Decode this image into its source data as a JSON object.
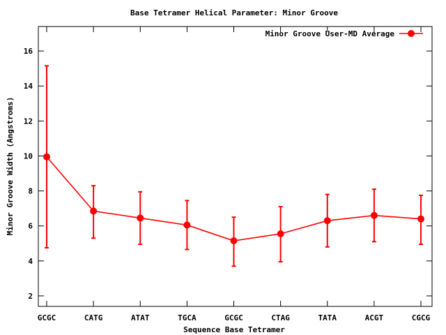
{
  "chart_data": {
    "type": "line",
    "title": "Base Tetramer Helical Parameter: Minor Groove",
    "xlabel": "Sequence Base Tetramer",
    "ylabel": "Minor Groove Width (Angstroms)",
    "categories": [
      "GCGC",
      "CATG",
      "ATAT",
      "TGCA",
      "GCGC",
      "CTAG",
      "TATA",
      "ACGT",
      "CGCG"
    ],
    "ylim": [
      1.4,
      17.4
    ],
    "yticks": [
      2,
      4,
      6,
      8,
      10,
      12,
      14,
      16
    ],
    "legend_position": "top-right",
    "grid": false,
    "series": [
      {
        "name": "Minor Groove User-MD Average",
        "color": "#ff0000",
        "marker": "circle",
        "values": [
          9.95,
          6.85,
          6.45,
          6.05,
          5.15,
          5.55,
          6.3,
          6.6,
          6.4
        ],
        "err_low": [
          4.75,
          5.3,
          4.95,
          4.65,
          3.7,
          3.95,
          4.8,
          5.1,
          4.95
        ],
        "err_high": [
          15.15,
          8.3,
          7.95,
          7.45,
          6.5,
          7.1,
          7.8,
          8.1,
          7.75
        ]
      }
    ]
  }
}
